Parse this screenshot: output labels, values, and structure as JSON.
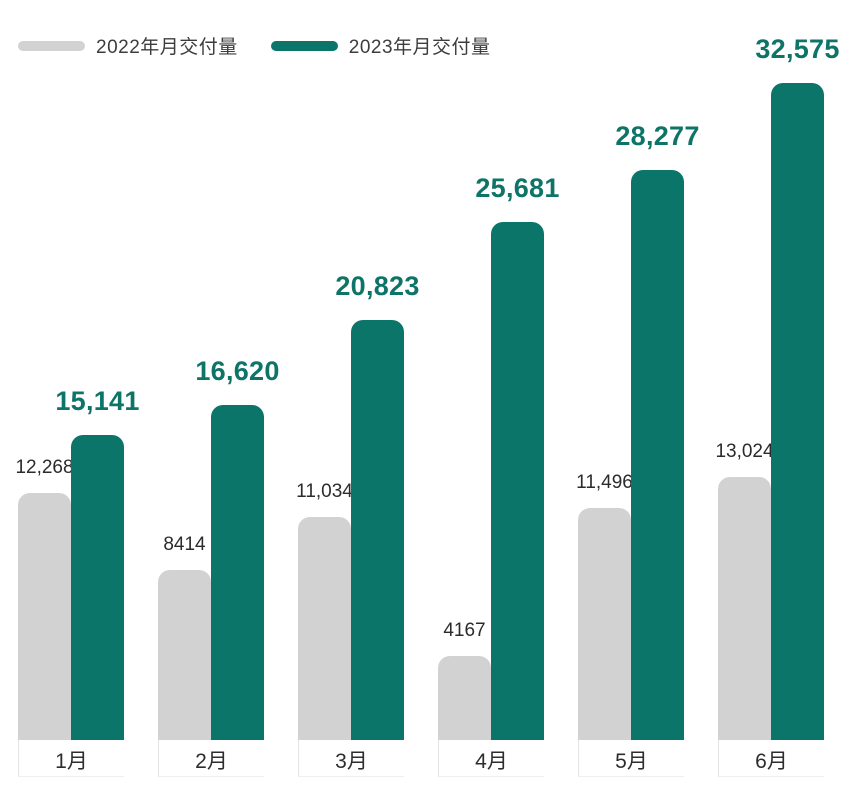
{
  "legend": [
    {
      "label": "2022年月交付量",
      "color": "#d2d2d2"
    },
    {
      "label": "2023年月交付量",
      "color": "#0a7568"
    }
  ],
  "colors": {
    "bar_2022": "#d2d2d2",
    "bar_2023": "#0a7568",
    "value_label_2022": "#2b2b2b",
    "value_label_2023": "#0e7468",
    "month_label": "#2d2d2d",
    "background": "#ffffff"
  },
  "chart_data": {
    "type": "bar",
    "title": "",
    "xlabel": "",
    "ylabel": "",
    "categories": [
      "1月",
      "2月",
      "3月",
      "4月",
      "5月",
      "6月"
    ],
    "series": [
      {
        "name": "2022年月交付量",
        "color": "#d2d2d2",
        "values": [
          12268,
          8414,
          11034,
          4167,
          11496,
          13024
        ],
        "value_labels": [
          "12,268",
          "8414",
          "11,034",
          "4167",
          "11,496",
          "13,024"
        ]
      },
      {
        "name": "2023年月交付量",
        "color": "#0a7568",
        "values": [
          15141,
          16620,
          20823,
          25681,
          28277,
          32575
        ],
        "value_labels": [
          "15,141",
          "16,620",
          "20,823",
          "25,681",
          "28,277",
          "32,575"
        ]
      }
    ],
    "ylim": [
      0,
      32575
    ],
    "grid": false,
    "axis_lines": false,
    "legend_position": "top-left",
    "value_labels_shown": true
  }
}
